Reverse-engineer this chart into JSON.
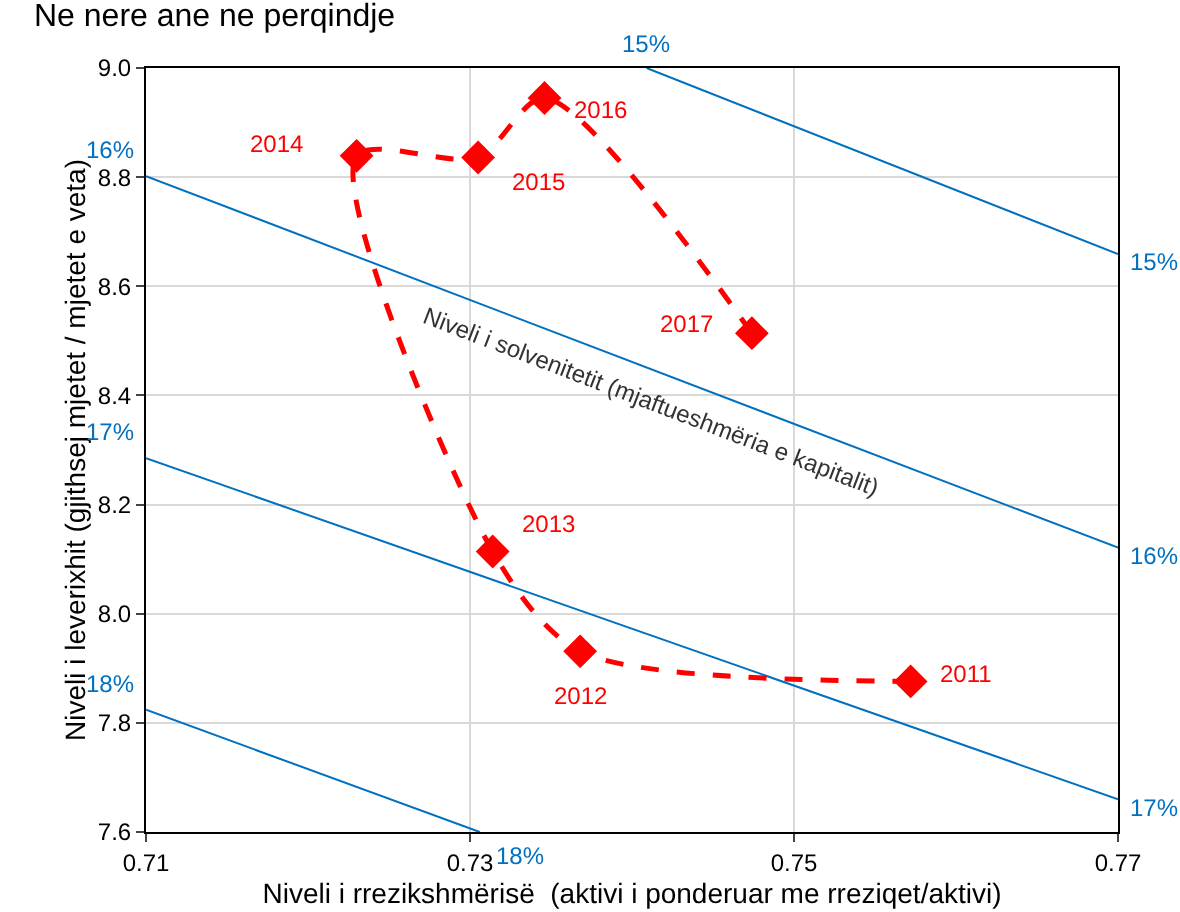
{
  "chart_data": {
    "type": "line",
    "title": "Ne nere ane ne perqindje",
    "xlabel": "Niveli i rrezikshmërisë  (aktivi i ponderuar me rreziqet/aktivi)",
    "ylabel": "Niveli i leverixhit (gjithsej mjetet / mjetet e veta)",
    "xlim": [
      0.71,
      0.77
    ],
    "xticks": [
      0.71,
      0.73,
      0.75,
      0.77
    ],
    "ylim": [
      7.6,
      9.0
    ],
    "yticks": [
      {
        "value": 7.6,
        "label": "7.6"
      },
      {
        "value": 7.8,
        "label": "7.8"
      },
      {
        "value": 8.0,
        "label": "8.0"
      },
      {
        "value": 8.2,
        "label": "8.2"
      },
      {
        "value": 8.4,
        "label": "8.4"
      },
      {
        "value": 8.6,
        "label": "8.6"
      },
      {
        "value": 8.8,
        "label": "8.8"
      },
      {
        "value": 9.0,
        "label": "9.0"
      }
    ],
    "grid": true,
    "series": [
      {
        "color": "#0070c0",
        "x": [
          0.7409,
          0.77
        ],
        "values": [
          9.0,
          8.659
        ]
      },
      {
        "color": "#0070c0",
        "x": [
          0.71,
          0.77
        ],
        "values": [
          8.802,
          8.121
        ]
      },
      {
        "color": "#0070c0",
        "x": [
          0.71,
          0.77
        ],
        "values": [
          8.285,
          7.66
        ]
      },
      {
        "color": "#0070c0",
        "x": [
          0.71,
          0.7306
        ],
        "values": [
          7.824,
          7.6
        ]
      },
      {
        "color": "#ff0000",
        "marker": "diamond",
        "line_style": "dashed",
        "x": [
          0.7572,
          0.7368,
          0.7314,
          0.723,
          0.7305,
          0.7346,
          0.7474
        ],
        "values": [
          7.876,
          7.931,
          8.114,
          8.839,
          8.836,
          8.945,
          8.514
        ]
      }
    ],
    "annotations": [
      {
        "text": "2011",
        "x": 0.7572,
        "y": 7.876
      },
      {
        "text": "2012",
        "x": 0.7368,
        "y": 7.931
      },
      {
        "text": "2013",
        "x": 0.7314,
        "y": 8.114
      },
      {
        "text": "2014",
        "x": 0.723,
        "y": 8.839
      },
      {
        "text": "2015",
        "x": 0.7305,
        "y": 8.836
      },
      {
        "text": "2016",
        "x": 0.7346,
        "y": 8.945
      },
      {
        "text": "2017",
        "x": 0.7474,
        "y": 8.514
      },
      {
        "text": "15%",
        "x": 0.7409,
        "y": 9.0
      },
      {
        "text": "15%",
        "x": 0.77,
        "y": 8.659
      },
      {
        "text": "16%",
        "x": 0.71,
        "y": 8.802
      },
      {
        "text": "16%",
        "x": 0.77,
        "y": 8.121
      },
      {
        "text": "17%",
        "x": 0.71,
        "y": 8.285
      },
      {
        "text": "17%",
        "x": 0.77,
        "y": 7.66
      },
      {
        "text": "18%",
        "x": 0.71,
        "y": 7.824
      },
      {
        "text": "18%",
        "x": 0.7306,
        "y": 7.6
      },
      "Niveli i solvenitetit (mjaftueshmëria e kapitalit)"
    ]
  }
}
